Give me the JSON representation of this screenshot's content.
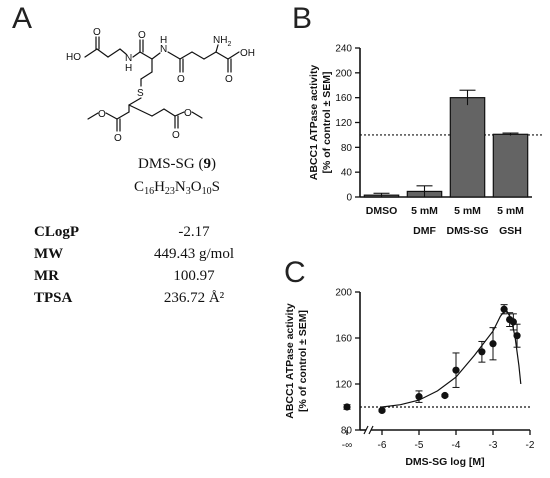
{
  "panels": {
    "a": "A",
    "b": "B",
    "c": "C"
  },
  "compound": {
    "name_prefix": "DMS-SG (",
    "name_number": "9",
    "name_suffix": ")",
    "formula": [
      "C",
      "16",
      "H",
      "23",
      "N",
      "3",
      "O",
      "10",
      "S"
    ],
    "structure_labels": {
      "acid_left": "HO",
      "nh_left": "N",
      "h_left": "H",
      "nh_right": "N",
      "h_right": "H",
      "nh2": "NH",
      "nh2_sub": "2",
      "oh_right": "OH",
      "s": "S",
      "o": "O"
    }
  },
  "properties": [
    {
      "key": "CLogP",
      "value": "-2.17"
    },
    {
      "key": "MW",
      "value": "449.43 g/mol"
    },
    {
      "key": "MR",
      "value": "100.97"
    },
    {
      "key": "TPSA",
      "value": "236.72 Å²"
    }
  ],
  "colors": {
    "bar_fill": "#646464",
    "ink": "#111111"
  },
  "chart_data": [
    {
      "type": "bar",
      "categories": [
        {
          "line1": "DMSO",
          "line2": ""
        },
        {
          "line1": "5 mM",
          "line2": "DMF"
        },
        {
          "line1": "5 mM",
          "line2": "DMS-SG"
        },
        {
          "line1": "5 mM",
          "line2": "GSH"
        }
      ],
      "values": [
        3,
        9,
        160,
        101
      ],
      "errors": [
        3,
        9,
        12,
        2
      ],
      "ylabel_line1": "ABCC1 ATPase activity",
      "ylabel_line2": "[% of control ± SEM]",
      "ylim": [
        0,
        240
      ],
      "yticks": [
        0,
        40,
        80,
        120,
        160,
        200,
        240
      ],
      "reference_line": 100,
      "grid": false
    },
    {
      "type": "scatter",
      "xlabel": "DMS-SG log [M]",
      "ylabel_line1": "ABCC1 ATPase activity",
      "ylabel_line2": "[% of control ± SEM]",
      "x_broken_label": "-∞",
      "xticks": [
        -6,
        -5,
        -4,
        -3,
        -2
      ],
      "xlim": [
        -6,
        -2
      ],
      "ylim": [
        80,
        200
      ],
      "yticks": [
        80,
        120,
        160,
        200
      ],
      "reference_line": 100,
      "points": [
        {
          "x": "-∞",
          "y": 100,
          "err": 2
        },
        {
          "x": -6.0,
          "y": 97,
          "err": 1
        },
        {
          "x": -5.0,
          "y": 109,
          "err": 5
        },
        {
          "x": -4.3,
          "y": 110,
          "err": 1
        },
        {
          "x": -4.0,
          "y": 132,
          "err": 15
        },
        {
          "x": -3.3,
          "y": 148,
          "err": 9
        },
        {
          "x": -3.0,
          "y": 155,
          "err": 14
        },
        {
          "x": -2.7,
          "y": 185,
          "err": 4
        },
        {
          "x": -2.55,
          "y": 176,
          "err": 6
        },
        {
          "x": -2.45,
          "y": 174,
          "err": 7
        },
        {
          "x": -2.35,
          "y": 162,
          "err": 10
        }
      ],
      "fit_curve": [
        {
          "x": -6.0,
          "y": 100
        },
        {
          "x": -5.5,
          "y": 102
        },
        {
          "x": -5.0,
          "y": 106
        },
        {
          "x": -4.5,
          "y": 114
        },
        {
          "x": -4.0,
          "y": 126
        },
        {
          "x": -3.5,
          "y": 145
        },
        {
          "x": -3.0,
          "y": 166
        },
        {
          "x": -2.8,
          "y": 179
        },
        {
          "x": -2.65,
          "y": 185
        },
        {
          "x": -2.5,
          "y": 176
        },
        {
          "x": -2.4,
          "y": 160
        },
        {
          "x": -2.3,
          "y": 136
        },
        {
          "x": -2.25,
          "y": 120
        }
      ],
      "grid": false
    }
  ]
}
